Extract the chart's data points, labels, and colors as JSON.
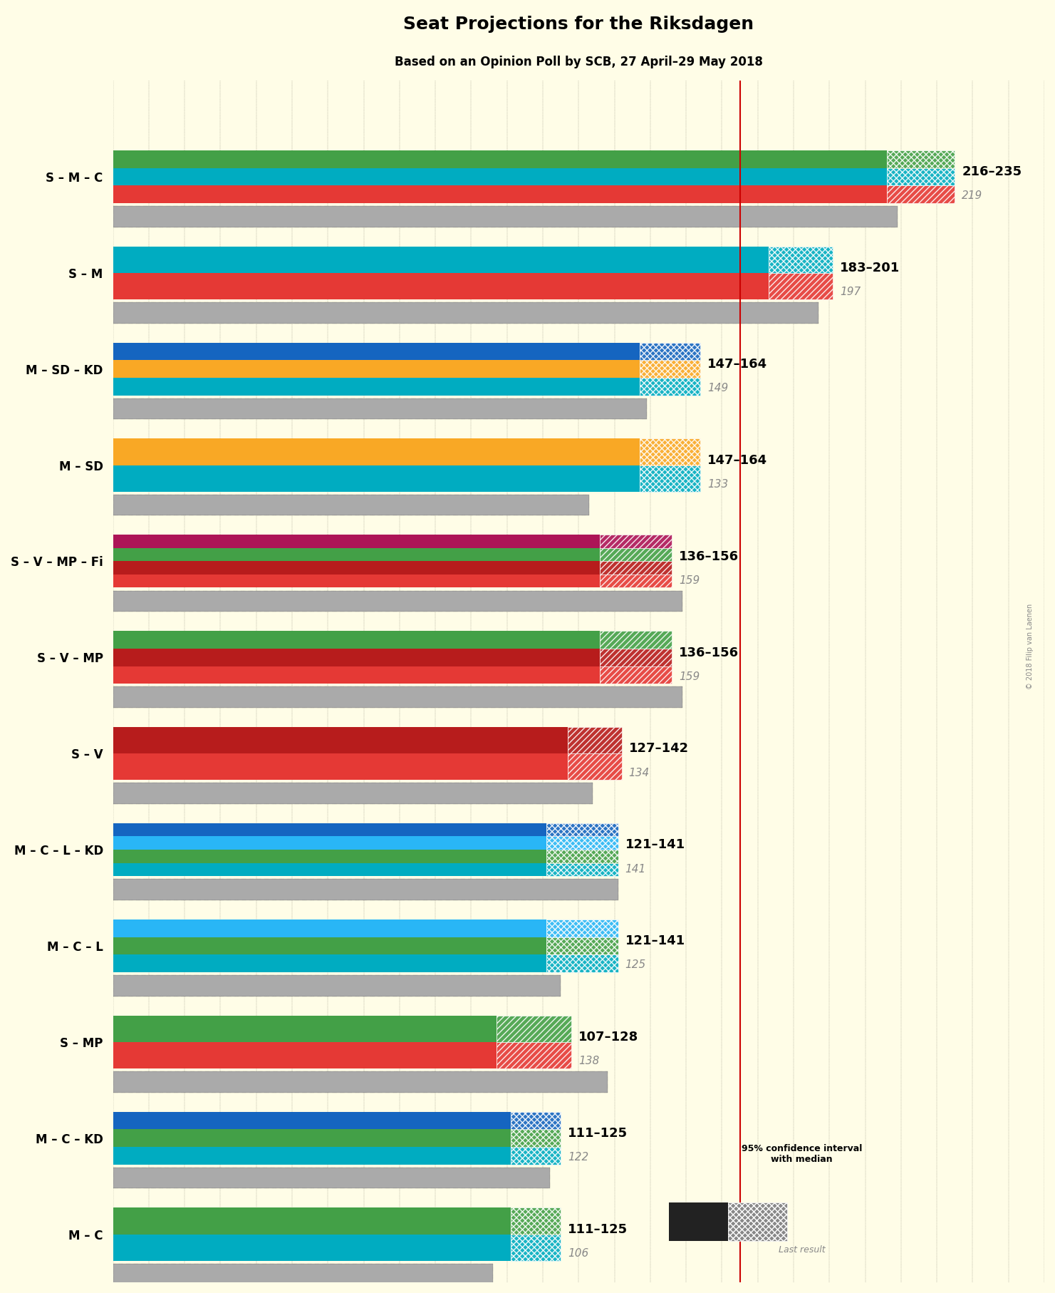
{
  "title": "Seat Projections for the Riksdagen",
  "subtitle": "Based on an Opinion Poll by SCB, 27 April–29 May 2018",
  "copyright": "© 2018 Filip van Laenen",
  "background_color": "#FFFDE7",
  "majority_line": 175,
  "xlim": [
    0,
    260
  ],
  "coalitions": [
    {
      "label": "S – M – C",
      "range_label": "216–235",
      "median": 219,
      "ci_low": 216,
      "ci_high": 235,
      "last_result": 219,
      "parties": [
        "S",
        "M",
        "C"
      ],
      "colors": [
        "#E53935",
        "#00ACC1",
        "#43A047"
      ],
      "ci_color": [
        "#E53935",
        "#00ACC1",
        "#43A047"
      ]
    },
    {
      "label": "S – M",
      "range_label": "183–201",
      "median": 197,
      "ci_low": 183,
      "ci_high": 201,
      "last_result": 197,
      "parties": [
        "S",
        "M"
      ],
      "colors": [
        "#E53935",
        "#00ACC1"
      ],
      "ci_color": [
        "#E53935",
        "#00ACC1"
      ]
    },
    {
      "label": "M – SD – KD",
      "range_label": "147–164",
      "median": 149,
      "ci_low": 147,
      "ci_high": 164,
      "last_result": 149,
      "parties": [
        "M",
        "SD",
        "KD"
      ],
      "colors": [
        "#00ACC1",
        "#F9A825",
        "#1565C0"
      ],
      "ci_color": [
        "#00ACC1",
        "#F9A825",
        "#1565C0"
      ]
    },
    {
      "label": "M – SD",
      "range_label": "147–164",
      "median": 133,
      "ci_low": 147,
      "ci_high": 164,
      "last_result": 133,
      "parties": [
        "M",
        "SD"
      ],
      "colors": [
        "#00ACC1",
        "#F9A825"
      ],
      "ci_color": [
        "#00ACC1",
        "#F9A825"
      ]
    },
    {
      "label": "S – V – MP – Fi",
      "range_label": "136–156",
      "median": 159,
      "ci_low": 136,
      "ci_high": 156,
      "last_result": 159,
      "parties": [
        "S",
        "V",
        "MP",
        "Fi"
      ],
      "colors": [
        "#E53935",
        "#B71C1C",
        "#43A047",
        "#AD1457"
      ],
      "ci_color": [
        "#E53935",
        "#43A047"
      ]
    },
    {
      "label": "S – V – MP",
      "range_label": "136–156",
      "median": 159,
      "ci_low": 136,
      "ci_high": 156,
      "last_result": 159,
      "parties": [
        "S",
        "V",
        "MP"
      ],
      "colors": [
        "#E53935",
        "#B71C1C",
        "#43A047"
      ],
      "ci_color": [
        "#E53935",
        "#43A047"
      ]
    },
    {
      "label": "S – V",
      "range_label": "127–142",
      "median": 134,
      "ci_low": 127,
      "ci_high": 142,
      "last_result": 134,
      "parties": [
        "S",
        "V"
      ],
      "colors": [
        "#E53935",
        "#B71C1C"
      ],
      "ci_color": [
        "#E53935"
      ]
    },
    {
      "label": "M – C – L – KD",
      "range_label": "121–141",
      "median": 141,
      "ci_low": 121,
      "ci_high": 141,
      "last_result": 141,
      "parties": [
        "M",
        "C",
        "L",
        "KD"
      ],
      "colors": [
        "#00ACC1",
        "#43A047",
        "#29B6F6",
        "#1565C0"
      ],
      "ci_color": [
        "#00ACC1",
        "#29B6F6"
      ]
    },
    {
      "label": "M – C – L",
      "range_label": "121–141",
      "median": 125,
      "ci_low": 121,
      "ci_high": 141,
      "last_result": 125,
      "parties": [
        "M",
        "C",
        "L"
      ],
      "colors": [
        "#00ACC1",
        "#43A047",
        "#29B6F6"
      ],
      "ci_color": [
        "#00ACC1",
        "#29B6F6"
      ]
    },
    {
      "label": "S – MP",
      "range_label": "107–128",
      "median": 138,
      "ci_low": 107,
      "ci_high": 128,
      "last_result": 138,
      "parties": [
        "S",
        "MP"
      ],
      "colors": [
        "#E53935",
        "#43A047"
      ],
      "ci_color": [
        "#E53935",
        "#43A047"
      ]
    },
    {
      "label": "M – C – KD",
      "range_label": "111–125",
      "median": 122,
      "ci_low": 111,
      "ci_high": 125,
      "last_result": 122,
      "parties": [
        "M",
        "C",
        "KD"
      ],
      "colors": [
        "#00ACC1",
        "#43A047",
        "#1565C0"
      ],
      "ci_color": [
        "#00ACC1",
        "#29B6F6"
      ]
    },
    {
      "label": "M – C",
      "range_label": "111–125",
      "median": 106,
      "ci_low": 111,
      "ci_high": 125,
      "last_result": 106,
      "parties": [
        "M",
        "C"
      ],
      "colors": [
        "#00ACC1",
        "#43A047"
      ],
      "ci_color": [
        "#00ACC1",
        "#29B6F6"
      ]
    }
  ],
  "party_colors": {
    "S": "#E53935",
    "M": "#00ACC1",
    "C": "#43A047",
    "SD": "#F9A825",
    "KD": "#1565C0",
    "V": "#8B0000",
    "MP": "#2E7D32",
    "Fi": "#AD1457",
    "L": "#29B6F6"
  }
}
